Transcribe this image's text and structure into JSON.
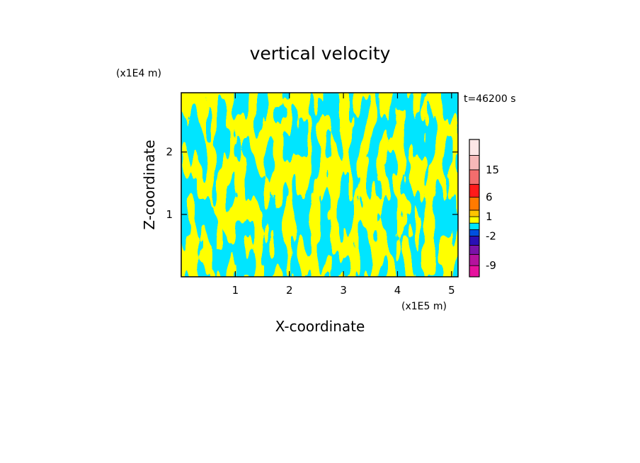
{
  "chart_data": {
    "type": "heatmap",
    "title": "vertical velocity",
    "time_label": "t=46200 s",
    "xlabel": "X-coordinate",
    "ylabel": "Z-coordinate",
    "x_scale_label": "(x1E5 m)",
    "y_scale_label": "(x1E4 m)",
    "xlim": [
      0,
      5.12
    ],
    "ylim": [
      0,
      2.95
    ],
    "x_ticks": [
      1,
      2,
      3,
      4,
      5
    ],
    "y_ticks": [
      1,
      2
    ],
    "colors": {
      "positive": "#ffff00",
      "negative": "#00e5ff",
      "background": "#ffffff"
    },
    "colorbar": {
      "tick_labels": [
        "15",
        "6",
        "1",
        "-2",
        "-9"
      ],
      "tick_values": [
        15,
        6,
        1,
        -2,
        -9
      ],
      "bands": [
        {
          "from": -12,
          "to": -9,
          "color": "#e6119e"
        },
        {
          "from": -9,
          "to": -6,
          "color": "#b5129e"
        },
        {
          "from": -6,
          "to": -4,
          "color": "#7a12a8"
        },
        {
          "from": -4,
          "to": -2,
          "color": "#2a10b5"
        },
        {
          "from": -2,
          "to": -1,
          "color": "#0050e0"
        },
        {
          "from": -1,
          "to": 0,
          "color": "#00e5ff"
        },
        {
          "from": 0,
          "to": 1,
          "color": "#ffff00"
        },
        {
          "from": 1,
          "to": 2,
          "color": "#ffc400"
        },
        {
          "from": 2,
          "to": 6,
          "color": "#ff7a00"
        },
        {
          "from": 6,
          "to": 10,
          "color": "#ff1a1a"
        },
        {
          "from": 10,
          "to": 15,
          "color": "#f26d6d"
        },
        {
          "from": 15,
          "to": 20,
          "color": "#f7b8b8"
        },
        {
          "from": 20,
          "to": 26,
          "color": "#fde6e6"
        }
      ]
    }
  }
}
